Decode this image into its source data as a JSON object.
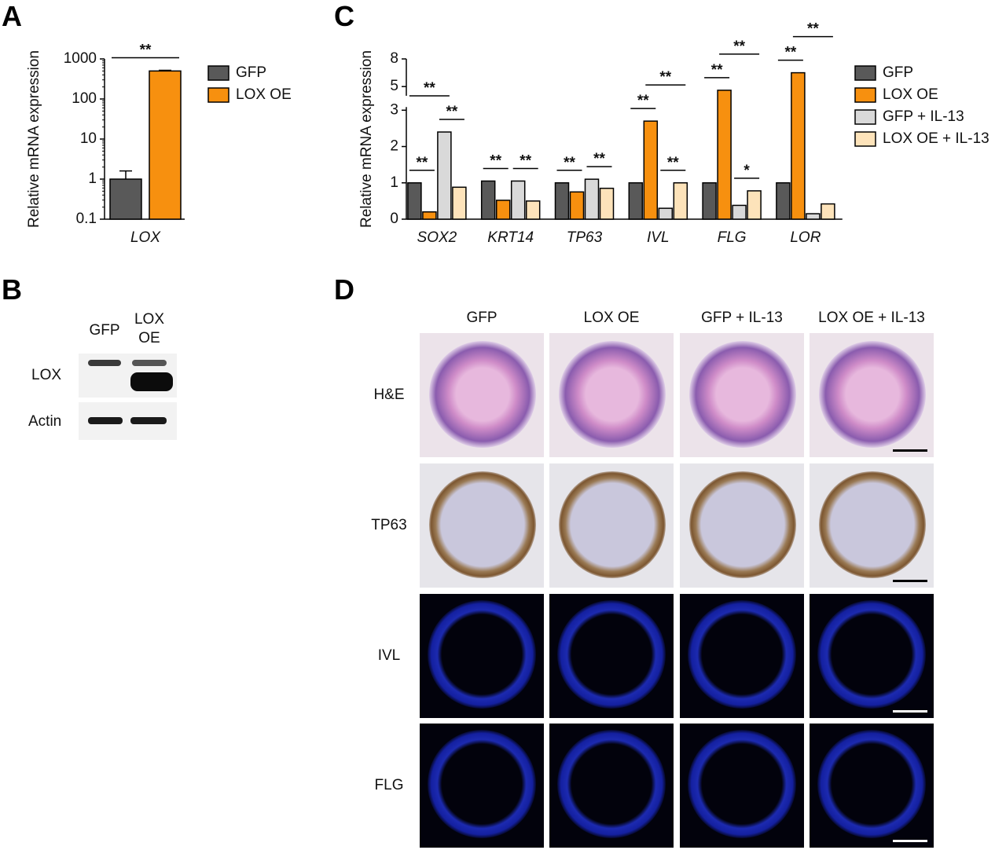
{
  "panel_labels": [
    "A",
    "B",
    "C",
    "D"
  ],
  "chart_data": [
    {
      "type": "bar",
      "y_label": "Relative mRNA expression",
      "categories": [
        "LOX"
      ],
      "log_scale": true,
      "ylim": [
        0.1,
        1000
      ],
      "yticks": [
        0.1,
        1,
        10,
        100,
        1000
      ],
      "legend": "right",
      "series": [
        {
          "name": "GFP",
          "color": "#595959",
          "values": [
            1
          ],
          "errors": [
            0.6
          ]
        },
        {
          "name": "LOX OE",
          "color": "#f7900f",
          "values": [
            500
          ],
          "errors": [
            20
          ]
        }
      ],
      "significance": [
        {
          "category": 0,
          "from": 0,
          "to": 1,
          "text": "**"
        }
      ]
    },
    {
      "type": "bar",
      "y_label": "Relative mRNA expression",
      "categories": [
        "SOX2",
        "KRT14",
        "TP63",
        "IVL",
        "FLG",
        "LOR"
      ],
      "log_scale": false,
      "ylim": [
        0,
        8
      ],
      "axis_break": [
        3,
        4
      ],
      "yticks": [
        0,
        1,
        2,
        3,
        5,
        8
      ],
      "legend": "right",
      "series": [
        {
          "name": "GFP",
          "color": "#595959",
          "values": [
            1.0,
            1.05,
            1.0,
            1.0,
            1.0,
            1.0
          ]
        },
        {
          "name": "LOX OE",
          "color": "#f7900f",
          "values": [
            0.2,
            0.52,
            0.75,
            2.7,
            4.6,
            6.5
          ]
        },
        {
          "name": "GFP + IL-13",
          "color": "#d9d9d9",
          "values": [
            2.4,
            1.05,
            1.1,
            0.3,
            0.38,
            0.15
          ]
        },
        {
          "name": "LOX OE + IL-13",
          "color": "#fde3ba",
          "values": [
            0.88,
            0.5,
            0.85,
            1.0,
            0.78,
            0.42
          ]
        }
      ],
      "significance": [
        {
          "category": 0,
          "from": 0,
          "to": 1,
          "text": "**"
        },
        {
          "category": 0,
          "from": 2,
          "to": 3,
          "text": "**"
        },
        {
          "category": 0,
          "from": 0,
          "to": 2,
          "text": "**"
        },
        {
          "category": 1,
          "from": 0,
          "to": 1,
          "text": "**"
        },
        {
          "category": 1,
          "from": 2,
          "to": 3,
          "text": "**"
        },
        {
          "category": 2,
          "from": 0,
          "to": 1,
          "text": "**"
        },
        {
          "category": 2,
          "from": 2,
          "to": 3,
          "text": "**"
        },
        {
          "category": 3,
          "from": 0,
          "to": 1,
          "text": "**"
        },
        {
          "category": 3,
          "from": 2,
          "to": 3,
          "text": "**"
        },
        {
          "category": 3,
          "from": 1,
          "to": 3,
          "text": "**"
        },
        {
          "category": 4,
          "from": 0,
          "to": 1,
          "text": "**"
        },
        {
          "category": 4,
          "from": 2,
          "to": 3,
          "text": "*"
        },
        {
          "category": 4,
          "from": 1,
          "to": 3,
          "text": "**"
        },
        {
          "category": 5,
          "from": 0,
          "to": 1,
          "text": "**"
        },
        {
          "category": 5,
          "from": 1,
          "to": 3,
          "text": "**"
        }
      ]
    }
  ],
  "western_blot": {
    "lanes": [
      "GFP",
      "LOX OE"
    ],
    "rows": [
      "LOX",
      "Actin"
    ]
  },
  "histology": {
    "columns": [
      "GFP",
      "LOX OE",
      "GFP + IL-13",
      "LOX OE + IL-13"
    ],
    "rows": [
      "H&E",
      "TP63",
      "IVL",
      "FLG"
    ]
  }
}
